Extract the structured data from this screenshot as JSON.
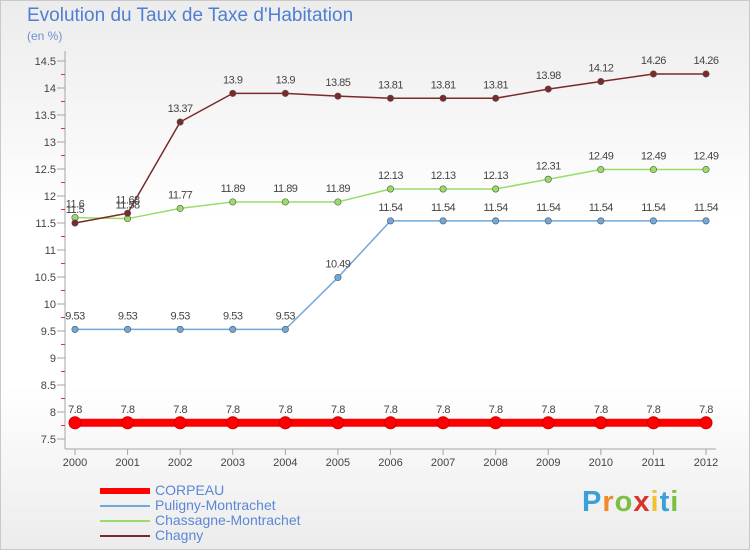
{
  "chart_data": {
    "type": "line",
    "title": "Evolution du Taux de Taxe d'Habitation",
    "subtitle": "(en %)",
    "x": [
      "2000",
      "2001",
      "2002",
      "2003",
      "2004",
      "2005",
      "2006",
      "2007",
      "2008",
      "2009",
      "2010",
      "2011",
      "2012"
    ],
    "ylim": [
      7.5,
      14.5
    ],
    "yticks": [
      "7.5",
      "8",
      "8.5",
      "9",
      "9.5",
      "10",
      "10.5",
      "11",
      "11.5",
      "12",
      "12.5",
      "13",
      "13.5",
      "14",
      "14.5"
    ],
    "grid": false,
    "legend_position": "bottom-left",
    "series": [
      {
        "name": "CORPEAU",
        "color": "#ff0000",
        "values": [
          7.8,
          7.8,
          7.8,
          7.8,
          7.8,
          7.8,
          7.8,
          7.8,
          7.8,
          7.8,
          7.8,
          7.8,
          7.8
        ],
        "labels": [
          "7.8",
          "7.8",
          "7.8",
          "7.8",
          "7.8",
          "7.8",
          "7.8",
          "7.8",
          "7.8",
          "7.8",
          "7.8",
          "7.8",
          "7.8"
        ]
      },
      {
        "name": "Puligny-Montrachet",
        "color": "#6fa8dc",
        "values": [
          9.53,
          9.53,
          9.53,
          9.53,
          9.53,
          10.49,
          11.54,
          11.54,
          11.54,
          11.54,
          11.54,
          11.54,
          11.54
        ],
        "labels": [
          "9.53",
          "9.53",
          "9.53",
          "9.53",
          "9.53",
          "10.49",
          "11.54",
          "11.54",
          "11.54",
          "11.54",
          "11.54",
          "11.54",
          "11.54"
        ]
      },
      {
        "name": "Chassagne-Montrachet",
        "color": "#99dd66",
        "values": [
          11.6,
          11.58,
          11.77,
          11.89,
          11.89,
          11.89,
          12.13,
          12.13,
          12.13,
          12.31,
          12.49,
          12.49,
          12.49
        ],
        "labels": [
          "11.6",
          "11.58",
          "11.77",
          "11.89",
          "11.89",
          "11.89",
          "12.13",
          "12.13",
          "12.13",
          "12.31",
          "12.49",
          "12.49",
          "12.49"
        ]
      },
      {
        "name": "Chagny",
        "color": "#7a2a2a",
        "values": [
          11.5,
          11.68,
          13.37,
          13.9,
          13.9,
          13.85,
          13.81,
          13.81,
          13.81,
          13.98,
          14.12,
          14.26,
          14.26
        ],
        "labels": [
          "11.5",
          "11.68",
          "13.37",
          "13.9",
          "13.9",
          "13.85",
          "13.81",
          "13.81",
          "13.81",
          "13.98",
          "14.12",
          "14.26",
          "14.26"
        ]
      }
    ]
  },
  "logo": {
    "letters": [
      "P",
      "r",
      "o",
      "x",
      "i",
      "t",
      "i"
    ],
    "colors": [
      "#3aa0d8",
      "#f08a2b",
      "#7bc043",
      "#d9332b",
      "#f2c12e",
      "#3aa0d8",
      "#7bc043"
    ]
  }
}
